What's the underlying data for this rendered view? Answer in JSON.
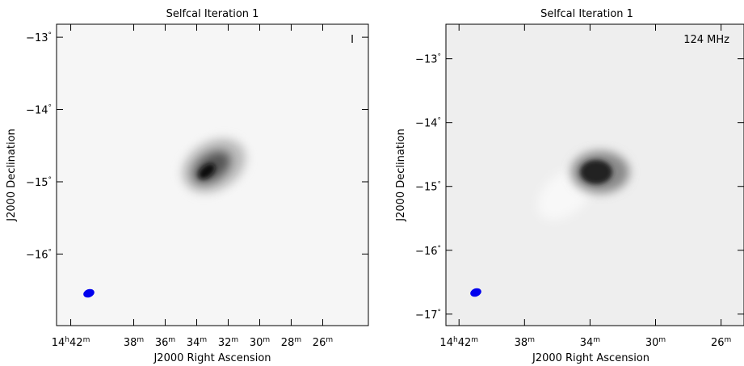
{
  "chart_data": [
    {
      "type": "image",
      "title": "Selfcal Iteration 1",
      "annotation": "I",
      "x_label": "J2000 Right Ascension",
      "y_label": "J2000 Declination",
      "xlim": [
        42.9,
        23.1
      ],
      "ylim": [
        -16.99,
        -12.82
      ],
      "xticks": [
        {
          "value": 42,
          "label": "14h42m"
        },
        {
          "value": 38,
          "label": "38m"
        },
        {
          "value": 36,
          "label": "36m"
        },
        {
          "value": 34,
          "label": "34m"
        },
        {
          "value": 32,
          "label": "32m"
        },
        {
          "value": 30,
          "label": "30m"
        },
        {
          "value": 28,
          "label": "28m"
        },
        {
          "value": 26,
          "label": "26m"
        }
      ],
      "yticks": [
        {
          "value": -13,
          "label": "−13°"
        },
        {
          "value": -14,
          "label": "−14°"
        },
        {
          "value": -15,
          "label": "−15°"
        },
        {
          "value": -16,
          "label": "−16°"
        }
      ]
    },
    {
      "type": "image",
      "title": "Selfcal Iteration 1",
      "annotation": "124 MHz",
      "x_label": "J2000 Right Ascension",
      "y_label": "J2000 Declination",
      "xlim": [
        42.8,
        24.6
      ],
      "ylim": [
        -17.18,
        -12.46
      ],
      "xticks": [
        {
          "value": 42,
          "label": "14h42m"
        },
        {
          "value": 38,
          "label": "38m"
        },
        {
          "value": 34,
          "label": "34m"
        },
        {
          "value": 30,
          "label": "30m"
        },
        {
          "value": 26,
          "label": "26m"
        }
      ],
      "yticks": [
        {
          "value": -13,
          "label": "−13°"
        },
        {
          "value": -14,
          "label": "−14°"
        },
        {
          "value": -15,
          "label": "−15°"
        },
        {
          "value": -16,
          "label": "−16°"
        },
        {
          "value": -17,
          "label": "−17°"
        }
      ]
    }
  ]
}
